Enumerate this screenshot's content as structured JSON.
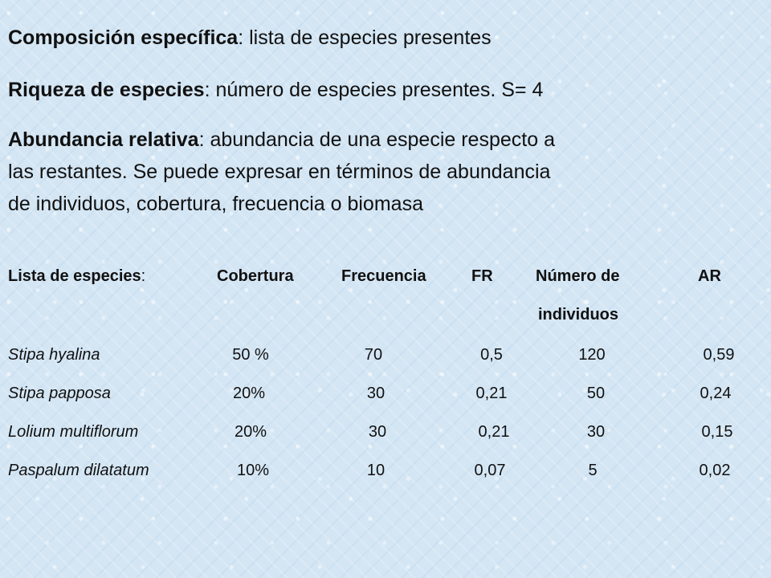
{
  "definitions": {
    "composicion": {
      "term": "Composición específica",
      "sep": ":",
      "text": " lista de especies presentes"
    },
    "riqueza": {
      "term": "Riqueza de especies",
      "sep": ":",
      "text": " número de especies presentes. S= 4"
    },
    "abundancia": {
      "term": "Abundancia relativa",
      "sep": ":",
      "line1": " abundancia de una especie respecto a",
      "line2": "las restantes. Se puede expresar  en términos de abundancia",
      "line3": "de individuos,  cobertura, frecuencia o biomasa"
    }
  },
  "table": {
    "headers": {
      "species": "Lista de especies",
      "species_sep": ":",
      "cobertura": "Cobertura",
      "frecuencia": "Frecuencia",
      "fr": "FR",
      "numero_line1": "Número de",
      "numero_line2": "individuos",
      "ar": "AR"
    },
    "rows": [
      {
        "species": "Stipa hyalina",
        "cobertura": "50 %",
        "frecuencia": "70",
        "fr": "0,5",
        "numero": "120",
        "ar": "0,59"
      },
      {
        "species": "Stipa papposa",
        "cobertura": "20%",
        "frecuencia": "30",
        "fr": "0,21",
        "numero": "50",
        "ar": "0,24"
      },
      {
        "species": "Lolium multiflorum",
        "cobertura": "20%",
        "frecuencia": "30",
        "fr": "0,21",
        "numero": "30",
        "ar": "0,15"
      },
      {
        "species": "Paspalum dilatatum",
        "cobertura": "10%",
        "frecuencia": "10",
        "fr": "0,07",
        "numero": "5",
        "ar": "0,02"
      }
    ]
  }
}
